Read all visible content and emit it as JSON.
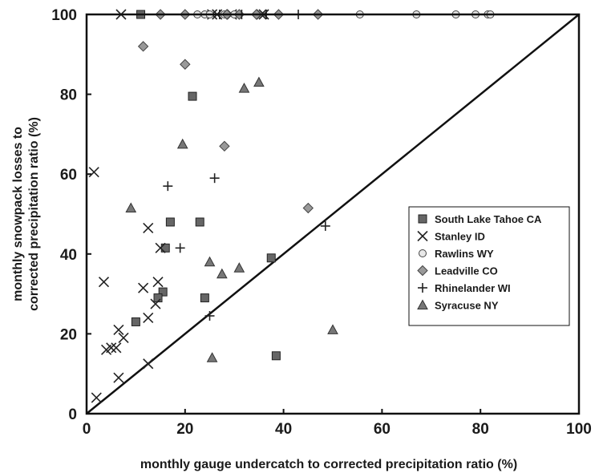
{
  "chart_data": {
    "type": "scatter",
    "title": "",
    "xlabel": "monthly gauge undercatch to corrected precipitation ratio (%)",
    "ylabel_line1": "monthly snowpack losses to",
    "ylabel_line2": "corrected precipitation ratio (%)",
    "xlim": [
      0,
      100
    ],
    "ylim": [
      0,
      100
    ],
    "xticks": [
      0,
      20,
      40,
      60,
      80,
      100
    ],
    "yticks": [
      0,
      20,
      40,
      60,
      80,
      100
    ],
    "grid": false,
    "legend_position": "right",
    "reference_line": {
      "x": [
        0,
        100
      ],
      "y": [
        0,
        100
      ]
    },
    "series": [
      {
        "name": "South Lake Tahoe CA",
        "marker": "square",
        "points": [
          [
            11,
            100
          ],
          [
            21.5,
            79.5
          ],
          [
            17,
            48
          ],
          [
            23,
            48
          ],
          [
            16,
            41.5
          ],
          [
            37.5,
            39
          ],
          [
            15.5,
            30.5
          ],
          [
            14.5,
            29
          ],
          [
            24,
            29
          ],
          [
            10,
            23
          ],
          [
            38.5,
            14.5
          ]
        ]
      },
      {
        "name": "Stanley ID",
        "marker": "x",
        "points": [
          [
            7,
            100
          ],
          [
            25.5,
            100
          ],
          [
            26.5,
            100
          ],
          [
            29.5,
            100
          ],
          [
            35.5,
            100
          ],
          [
            36,
            100
          ],
          [
            1.5,
            60.5
          ],
          [
            12.5,
            46.5
          ],
          [
            15,
            41.5
          ],
          [
            3.5,
            33
          ],
          [
            14.5,
            33
          ],
          [
            11.5,
            31.5
          ],
          [
            14,
            27.5
          ],
          [
            12.5,
            24
          ],
          [
            6.5,
            21
          ],
          [
            7.5,
            19
          ],
          [
            5,
            16.5
          ],
          [
            4,
            16
          ],
          [
            6,
            16.5
          ],
          [
            12.5,
            12.5
          ],
          [
            6.5,
            9
          ],
          [
            2,
            4
          ]
        ]
      },
      {
        "name": "Rawlins WY",
        "marker": "circle",
        "points": [
          [
            22.5,
            100
          ],
          [
            24,
            100
          ],
          [
            25,
            100
          ],
          [
            28,
            100
          ],
          [
            30,
            100
          ],
          [
            55.5,
            100
          ],
          [
            67,
            100
          ],
          [
            75,
            100
          ],
          [
            79,
            100
          ],
          [
            81.5,
            100
          ],
          [
            82,
            100
          ]
        ]
      },
      {
        "name": "Leadville CO",
        "marker": "diamond",
        "points": [
          [
            15,
            100
          ],
          [
            20,
            100
          ],
          [
            28.5,
            100
          ],
          [
            31,
            100
          ],
          [
            34.5,
            100
          ],
          [
            39,
            100
          ],
          [
            47,
            100
          ],
          [
            11.5,
            92
          ],
          [
            20,
            87.5
          ],
          [
            28,
            67
          ],
          [
            45,
            51.5
          ]
        ]
      },
      {
        "name": "Rhinelander WI",
        "marker": "plus",
        "points": [
          [
            27,
            100
          ],
          [
            31.5,
            100
          ],
          [
            36.5,
            100
          ],
          [
            43,
            100
          ],
          [
            16.5,
            57
          ],
          [
            26,
            59
          ],
          [
            19,
            41.5
          ],
          [
            25,
            24.5
          ],
          [
            48.5,
            47
          ]
        ]
      },
      {
        "name": "Syracuse NY",
        "marker": "triangle",
        "points": [
          [
            9,
            51.5
          ],
          [
            19.5,
            67.5
          ],
          [
            32,
            81.5
          ],
          [
            35,
            83
          ],
          [
            25,
            38
          ],
          [
            27.5,
            35
          ],
          [
            31,
            36.5
          ],
          [
            25.5,
            14
          ],
          [
            50,
            21
          ]
        ]
      }
    ]
  }
}
